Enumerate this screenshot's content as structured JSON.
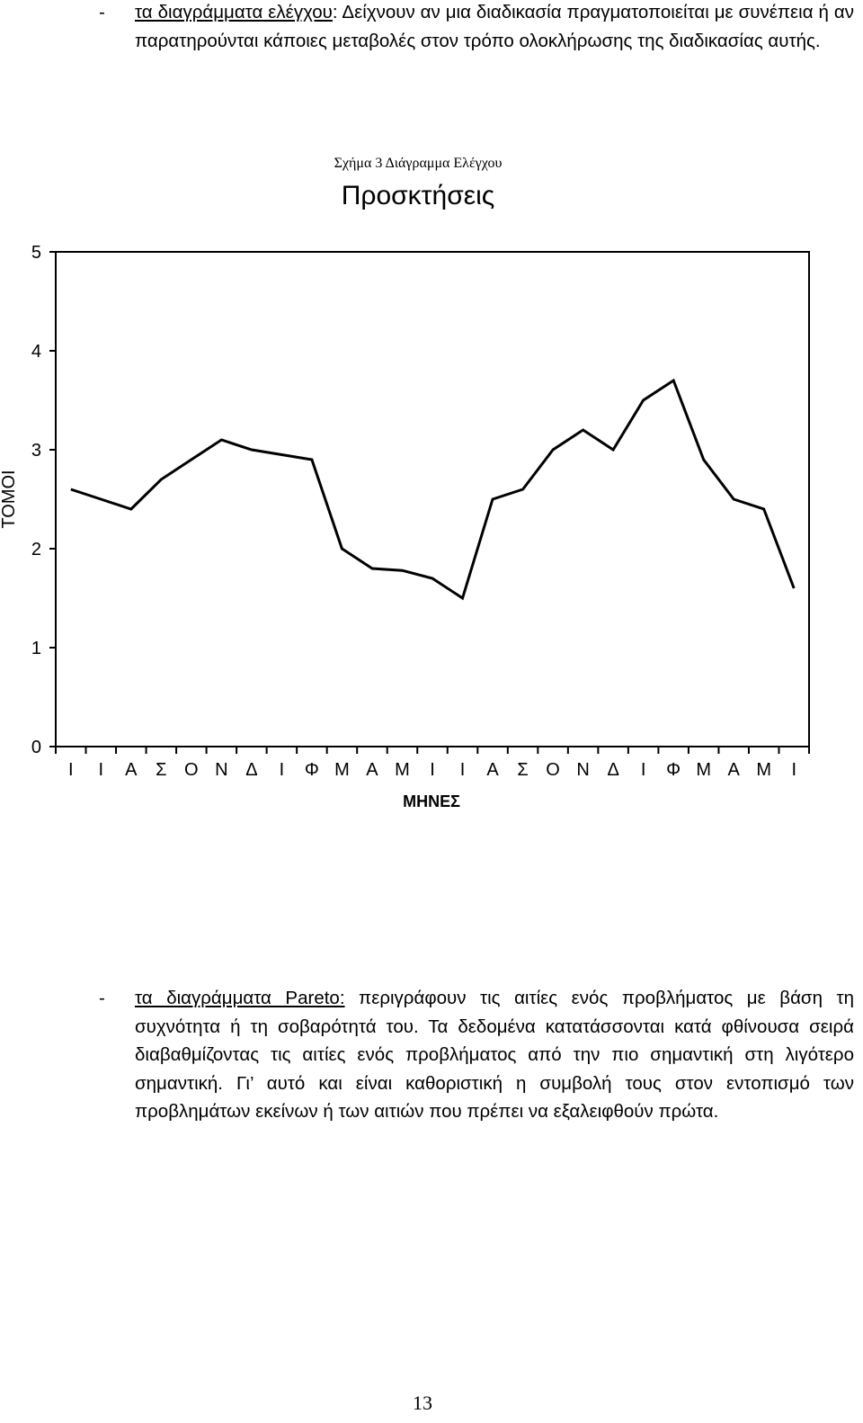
{
  "paragraph_top": {
    "dash": "-",
    "term": "τα διαγράμματα ελέγχου",
    "text": ": Δείχνουν αν μια διαδικασία πραγματοποιείται με συνέπεια ή αν παρατηρούνται κάποιες μεταβολές στον τρόπο ολοκλήρωσης της διαδικασίας αυτής."
  },
  "figure_caption": "Σχήμα 3 Διάγραμμα Ελέγχου",
  "chart_data": {
    "type": "line",
    "title": "Προσκτήσεις",
    "xlabel": "ΜΗΝΕΣ",
    "ylabel": "ΤΟΜΟΙ",
    "ylim": [
      0,
      5
    ],
    "yticks": [
      0,
      1,
      2,
      3,
      4,
      5
    ],
    "grid": false,
    "categories": [
      "Ι",
      "Ι",
      "Α",
      "Σ",
      "Ο",
      "Ν",
      "Δ",
      "Ι",
      "Φ",
      "Μ",
      "Α",
      "Μ",
      "Ι",
      "Ι",
      "Α",
      "Σ",
      "Ο",
      "Ν",
      "Δ",
      "Ι",
      "Φ",
      "Μ",
      "Α",
      "Μ",
      "Ι"
    ],
    "values": [
      2.6,
      2.5,
      2.4,
      2.7,
      2.9,
      3.1,
      3.0,
      2.95,
      2.9,
      2.0,
      1.8,
      1.78,
      1.7,
      1.5,
      2.5,
      2.6,
      3.0,
      3.2,
      3.0,
      3.5,
      3.7,
      2.9,
      2.5,
      2.4,
      1.6
    ]
  },
  "paragraph_bottom": {
    "dash": "-",
    "term": "τα διαγράμματα Pareto:",
    "text": " περιγράφουν τις αιτίες ενός προβλήματος με βάση τη συχνότητα ή τη σοβαρότητά του. Τα δεδομένα κατατάσσονται κατά φθίνουσα σειρά διαβαθμίζοντας τις αιτίες ενός προβλήματος από την πιο σημαντική στη λιγότερο σημαντική. Γι’ αυτό και είναι καθοριστική η συμβολή τους στον εντοπισμό των προβλημάτων εκείνων ή των αιτιών που πρέπει να εξαλειφθούν πρώτα."
  },
  "page_number": "13"
}
